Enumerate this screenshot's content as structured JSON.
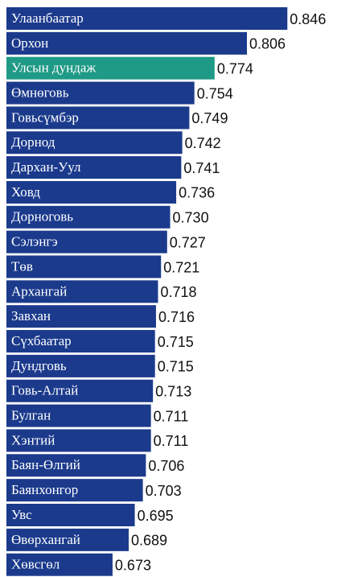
{
  "chart_data": {
    "type": "barh",
    "categories": [
      "Улаанбаатар",
      "Орхон",
      "Улсын дундаж",
      "Өмнөговь",
      "Говьсүмбэр",
      "Дорнод",
      "Дархан-Уул",
      "Ховд",
      "Дорноговь",
      "Сэлэнгэ",
      "Төв",
      "Архангай",
      "Завхан",
      "Сүхбаатар",
      "Дундговь",
      "Говь-Алтай",
      "Булган",
      "Хэнтий",
      "Баян-Өлгий",
      "Баянхонгор",
      "Увс",
      "Өвөрхангай",
      "Хөвсгөл"
    ],
    "values": [
      0.846,
      0.806,
      0.774,
      0.754,
      0.749,
      0.742,
      0.741,
      0.736,
      0.73,
      0.727,
      0.721,
      0.718,
      0.716,
      0.715,
      0.715,
      0.713,
      0.711,
      0.711,
      0.706,
      0.703,
      0.695,
      0.689,
      0.673
    ],
    "value_labels": [
      "0.846",
      "0.806",
      "0.774",
      "0.754",
      "0.749",
      "0.742",
      "0.741",
      "0.736",
      "0.730",
      "0.727",
      "0.721",
      "0.718",
      "0.716",
      "0.715",
      "0.715",
      "0.713",
      "0.711",
      "0.711",
      "0.706",
      "0.703",
      "0.695",
      "0.689",
      "0.673"
    ],
    "colors": [
      "#1b3a8c",
      "#1b3a8c",
      "#1f9a86",
      "#1b3a8c",
      "#1b3a8c",
      "#1b3a8c",
      "#1b3a8c",
      "#1b3a8c",
      "#1b3a8c",
      "#1b3a8c",
      "#1b3a8c",
      "#1b3a8c",
      "#1b3a8c",
      "#1b3a8c",
      "#1b3a8c",
      "#1b3a8c",
      "#1b3a8c",
      "#1b3a8c",
      "#1b3a8c",
      "#1b3a8c",
      "#1b3a8c",
      "#1b3a8c",
      "#1b3a8c"
    ],
    "xlim": [
      0.568,
      0.88
    ]
  }
}
